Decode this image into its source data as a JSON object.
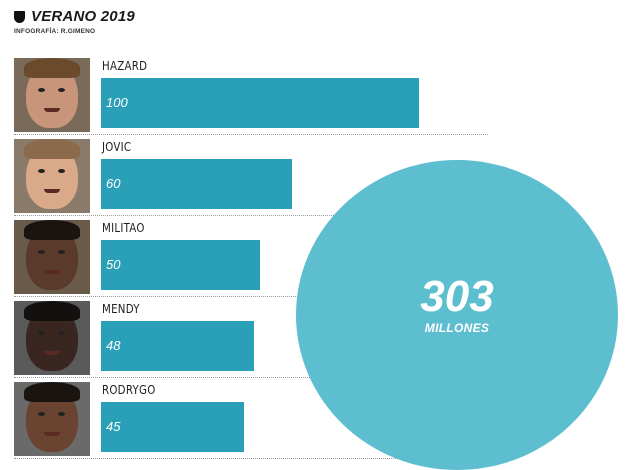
{
  "header": {
    "title": "VERANO 2019",
    "credit": "INFOGRAFÍA: R.GIMENO"
  },
  "chart_data": {
    "type": "bar",
    "orientation": "horizontal",
    "title": "VERANO 2019",
    "categories": [
      "HAZARD",
      "JOVIC",
      "MILITAO",
      "MENDY",
      "RODRYGO"
    ],
    "values": [
      100,
      60,
      50,
      48,
      45
    ],
    "value_labels": [
      "100",
      "60",
      "50",
      "48",
      "45"
    ],
    "xlim": [
      0,
      100
    ],
    "grid": false,
    "legend": "none",
    "bar_color": "#2a9fb8",
    "total": {
      "value": "303",
      "unit": "MILLONES",
      "color": "#5cbecf"
    }
  },
  "colors": {
    "bar": "#2a9fb8",
    "circle": "#5cbecf"
  }
}
